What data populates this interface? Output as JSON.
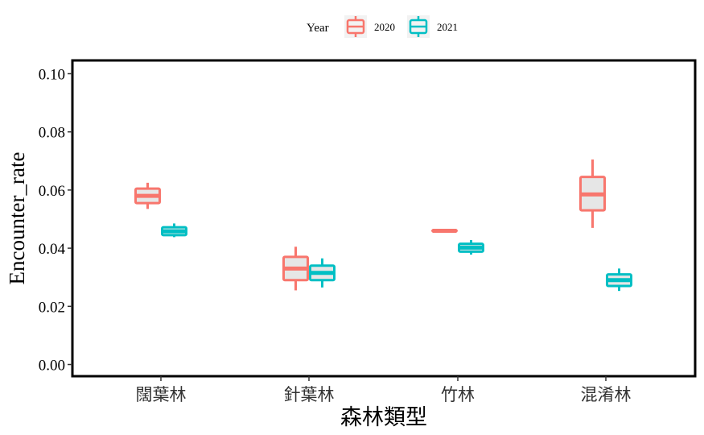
{
  "chart_data": {
    "type": "boxplot",
    "xlabel": "森林類型",
    "ylabel": "Encounter_rate",
    "ylim": [
      0,
      0.105
    ],
    "yticks": [
      "0.00",
      "0.02",
      "0.04",
      "0.06",
      "0.08",
      "0.10"
    ],
    "ytick_values": [
      0,
      0.02,
      0.04,
      0.06,
      0.08,
      0.1
    ],
    "categories": [
      "闊葉林",
      "針葉林",
      "竹林",
      "混淆林"
    ],
    "legend": {
      "title": "Year",
      "position": "top",
      "entries": [
        "2020",
        "2021"
      ]
    },
    "grid": false,
    "series": [
      {
        "name": "2020",
        "color": "#F8766D",
        "boxes": [
          {
            "min": 0.0535,
            "q1": 0.0555,
            "median": 0.058,
            "q3": 0.0605,
            "max": 0.0625
          },
          {
            "min": 0.0255,
            "q1": 0.029,
            "median": 0.033,
            "q3": 0.037,
            "max": 0.0405
          },
          {
            "min": 0.0458,
            "q1": 0.0458,
            "median": 0.046,
            "q3": 0.0462,
            "max": 0.0462
          },
          {
            "min": 0.047,
            "q1": 0.053,
            "median": 0.0585,
            "q3": 0.0645,
            "max": 0.0705
          }
        ]
      },
      {
        "name": "2021",
        "color": "#00BFC4",
        "boxes": [
          {
            "min": 0.0438,
            "q1": 0.0445,
            "median": 0.0458,
            "q3": 0.0472,
            "max": 0.0485
          },
          {
            "min": 0.0265,
            "q1": 0.029,
            "median": 0.0315,
            "q3": 0.034,
            "max": 0.0365
          },
          {
            "min": 0.0378,
            "q1": 0.0388,
            "median": 0.0402,
            "q3": 0.0415,
            "max": 0.0428
          },
          {
            "min": 0.0253,
            "q1": 0.027,
            "median": 0.029,
            "q3": 0.031,
            "max": 0.033
          }
        ]
      }
    ]
  }
}
